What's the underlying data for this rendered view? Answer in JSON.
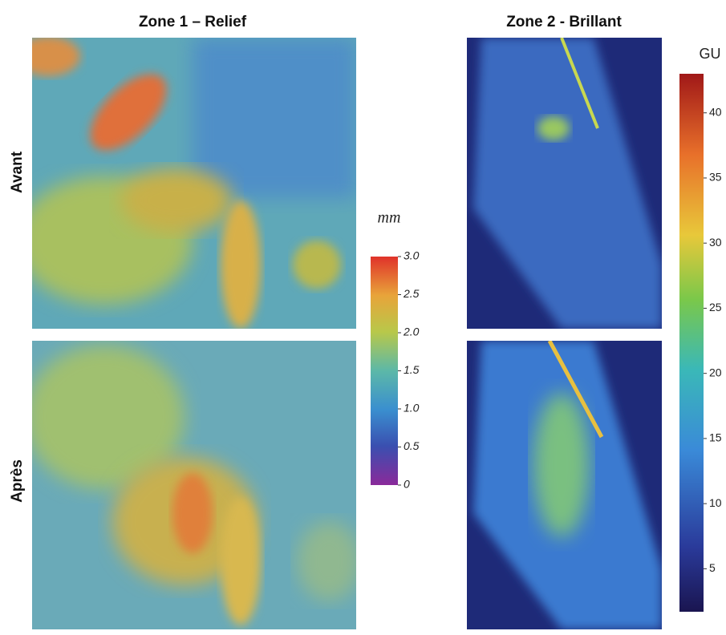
{
  "titles": [
    "Zone 1 – Relief",
    "Zone 2 - Brillant"
  ],
  "row_labels": [
    "Avant",
    "Après"
  ],
  "colorbars": [
    {
      "label": "mm",
      "range": [
        0,
        3
      ],
      "ticks": [
        0,
        0.5,
        {
          "value": 1,
          "label": "1.0"
        },
        1.5,
        {
          "value": 2,
          "label": "2.0"
        },
        2.5,
        {
          "value": 3,
          "label": "3.0"
        }
      ]
    },
    {
      "label": "GU",
      "range": [
        1.7,
        43
      ],
      "ticks": [
        5,
        10,
        15,
        20,
        25,
        30,
        35,
        40
      ]
    }
  ]
}
